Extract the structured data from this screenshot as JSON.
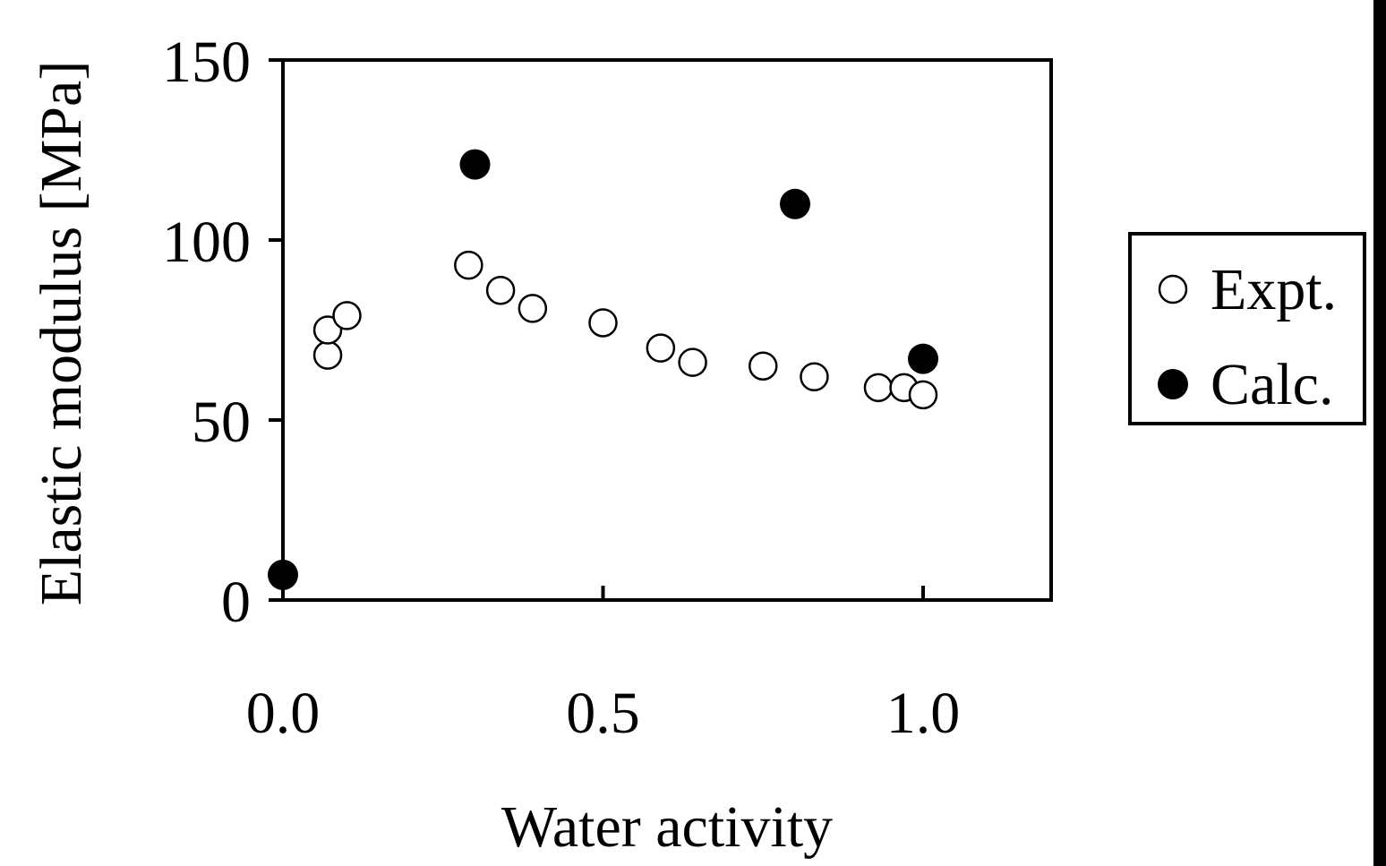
{
  "chart_data": {
    "type": "scatter",
    "xlabel": "Water activity",
    "ylabel": "Elastic modulus [MPa]",
    "xlim": [
      0.0,
      1.2
    ],
    "ylim": [
      0,
      150
    ],
    "x_ticks": [
      0.0,
      0.5,
      1.0
    ],
    "x_tick_labels": [
      "0.0",
      "0.5",
      "1.0"
    ],
    "y_ticks": [
      0,
      50,
      100,
      150
    ],
    "y_tick_labels": [
      "0",
      "50",
      "100",
      "150"
    ],
    "grid": false,
    "legend_position": "right, outside plot",
    "series": [
      {
        "name": "Expt.",
        "marker": "open-circle",
        "color": "#000000",
        "x": [
          0.07,
          0.07,
          0.1,
          0.29,
          0.34,
          0.39,
          0.5,
          0.59,
          0.64,
          0.75,
          0.83,
          0.93,
          0.97,
          1.0
        ],
        "y": [
          68,
          75,
          79,
          93,
          86,
          81,
          77,
          70,
          66,
          65,
          62,
          59,
          59,
          57
        ]
      },
      {
        "name": "Calc.",
        "marker": "filled-circle",
        "color": "#000000",
        "x": [
          0.0,
          0.3,
          0.8,
          1.0
        ],
        "y": [
          7,
          121,
          110,
          67
        ]
      }
    ]
  }
}
